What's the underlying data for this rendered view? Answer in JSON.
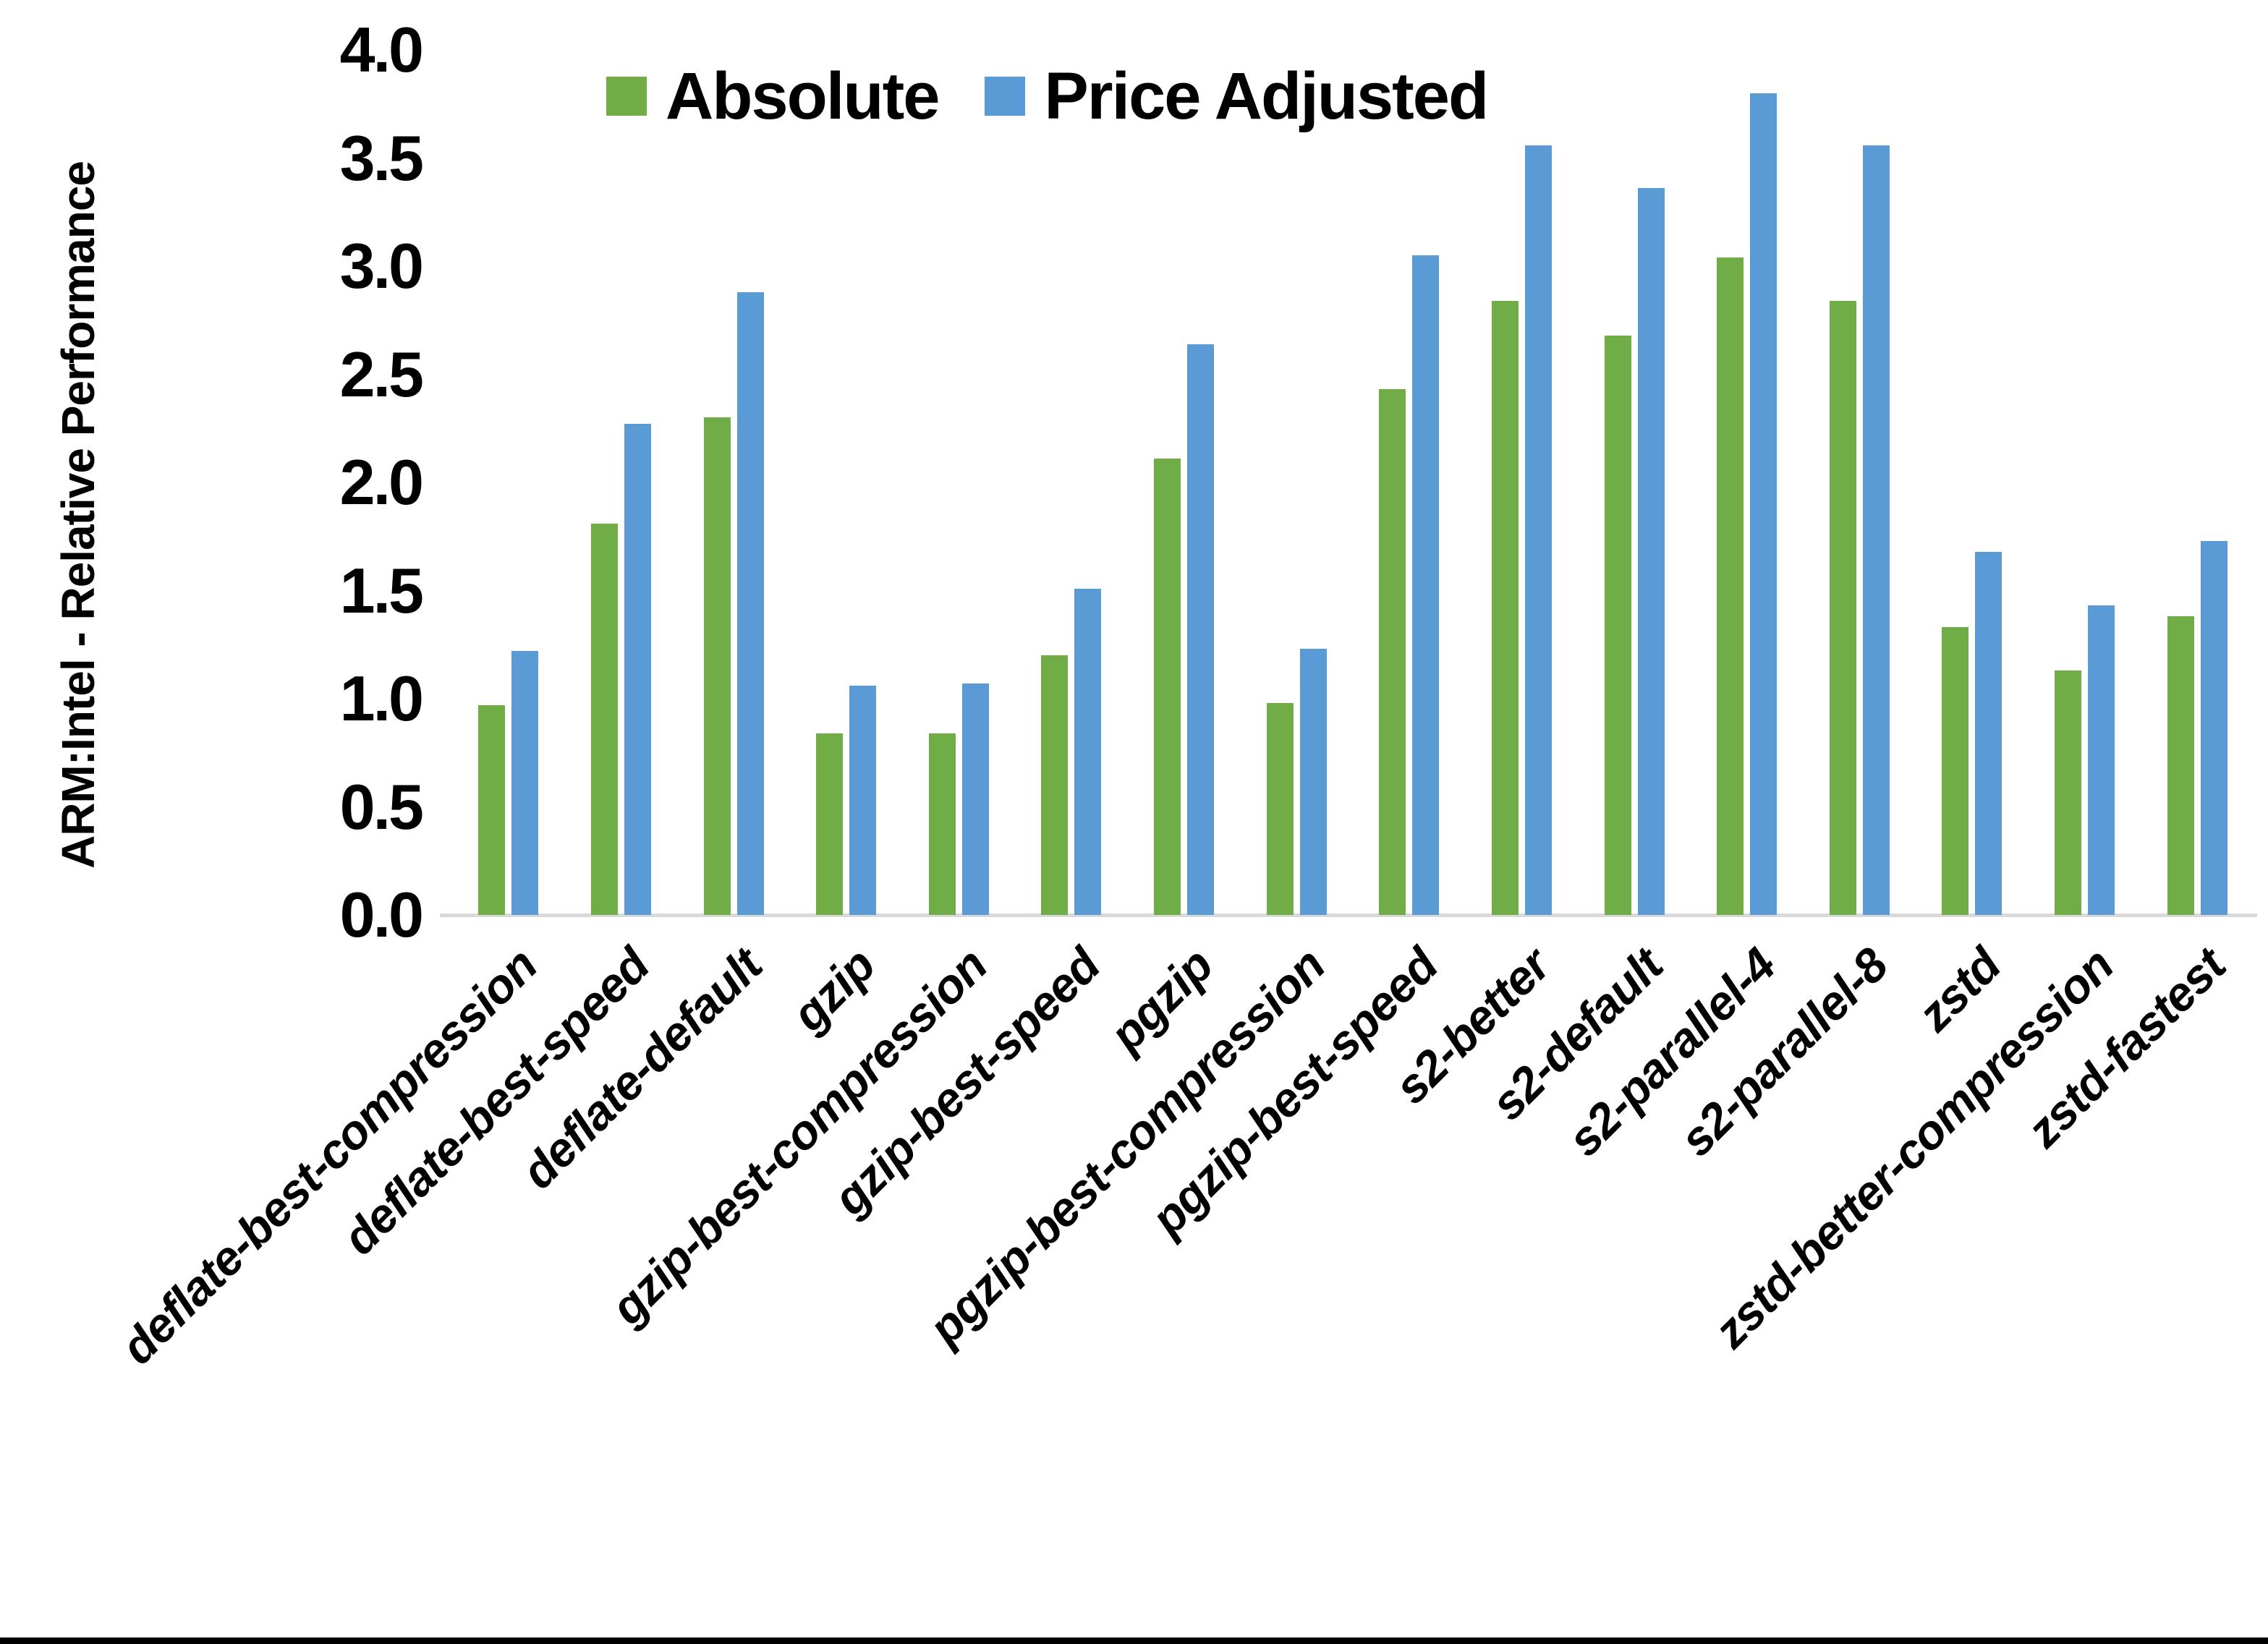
{
  "page": {
    "background": "#ffffff",
    "bottom_bar_color": "#000000",
    "axis_line_color": "#D9D9D9"
  },
  "y_axis": {
    "title": "ARM:Intel - Relative Performance",
    "ticks": [
      "0.0",
      "0.5",
      "1.0",
      "1.5",
      "2.0",
      "2.5",
      "3.0",
      "3.5",
      "4.0"
    ],
    "min": 0,
    "max": 4,
    "tick_step": 0.5
  },
  "legend": {
    "items": [
      {
        "label": "Absolute",
        "color": "#70AD47"
      },
      {
        "label": "Price Adjusted",
        "color": "#5B9BD5"
      }
    ],
    "position": "top"
  },
  "chart_data": {
    "type": "bar",
    "title": "",
    "xlabel": "",
    "ylabel": "ARM:Intel - Relative Performance",
    "ylim": [
      0,
      4
    ],
    "grid": false,
    "legend_position": "top",
    "categories": [
      "deflate-best-compression",
      "deflate-best-speed",
      "deflate-default",
      "gzip",
      "gzip-best-compression",
      "gzip-best-speed",
      "pgzip",
      "pgzip-best-compression",
      "pgzip-best-speed",
      "s2-better",
      "s2-default",
      "s2-parallel-4",
      "s2-parallel-8",
      "zstd",
      "zstd-better-compression",
      "zstd-fastest"
    ],
    "series": [
      {
        "name": "Absolute",
        "color": "#70AD47",
        "values": [
          0.97,
          1.81,
          2.3,
          0.84,
          0.84,
          1.2,
          2.11,
          0.98,
          2.43,
          2.84,
          2.68,
          3.04,
          2.84,
          1.33,
          1.13,
          1.38
        ]
      },
      {
        "name": "Price Adjusted",
        "color": "#5B9BD5",
        "values": [
          1.22,
          2.27,
          2.88,
          1.06,
          1.07,
          1.51,
          2.64,
          1.23,
          3.05,
          3.56,
          3.36,
          3.8,
          3.56,
          1.68,
          1.43,
          1.73
        ]
      }
    ]
  }
}
